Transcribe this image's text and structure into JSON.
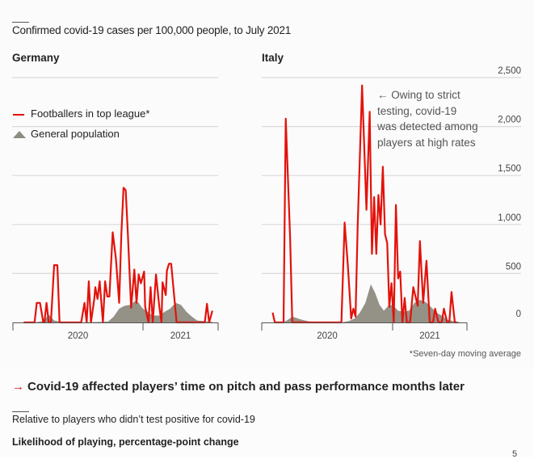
{
  "title": "Confirmed covid-19 cases per 100,000 people, to July 2021",
  "colors": {
    "footballers": "#e3120b",
    "population": "#8e8b80",
    "grid": "#d9d9d9",
    "axis": "#555555"
  },
  "legend": {
    "footballers": "Footballers in top league*",
    "population": "General population"
  },
  "annotation": {
    "arrow_icon": "←",
    "lines": [
      "Owing to strict",
      "testing, covid-19",
      "was detected among",
      "players at high rates"
    ]
  },
  "footnote": "*Seven-day moving average",
  "next_section": {
    "arrow_icon": "→",
    "title": "Covid-19 affected players’ time on pitch and pass performance months later",
    "subtitle": "Relative to players who didn’t test positive for covid-19",
    "metric_label": "Likelihood of playing, percentage-point change"
  },
  "page_number": "5",
  "chart_data": [
    {
      "type": "line",
      "title": "Germany",
      "xlabel": "",
      "ylabel": "",
      "x_units": "months since Jan 2020",
      "xlim": [
        0,
        19
      ],
      "ylim": [
        0,
        2500
      ],
      "yticks": [
        0,
        500,
        1000,
        1500,
        2000,
        2500
      ],
      "ytick_labels": [
        "0",
        "500",
        "1,000",
        "1,500",
        "2,000",
        "2,500"
      ],
      "xtick_labels": [
        "2020",
        "2021"
      ],
      "grid": true,
      "legend_position": "top-left",
      "series": [
        {
          "name": "Footballers in top league*",
          "kind": "line",
          "x": [
            1.0,
            2.0,
            2.2,
            2.5,
            2.8,
            2.9,
            3.1,
            3.3,
            3.5,
            3.8,
            3.8,
            4.1,
            4.3,
            4.5,
            6.3,
            6.6,
            6.8,
            7.0,
            7.2,
            7.5,
            7.6,
            7.8,
            8.0,
            8.3,
            8.5,
            8.7,
            8.9,
            9.2,
            9.5,
            9.8,
            10.0,
            10.2,
            10.4,
            10.6,
            10.9,
            11.2,
            11.4,
            11.6,
            11.8,
            12.1,
            12.2,
            12.5,
            12.7,
            12.9,
            13.2,
            13.5,
            13.7,
            13.8,
            14.1,
            14.2,
            14.4,
            14.6,
            15.1,
            15.7,
            17.7,
            17.9,
            18.1,
            18.4
          ],
          "y": [
            0,
            0,
            200,
            200,
            0,
            0,
            200,
            0,
            0,
            585,
            585,
            585,
            0,
            0,
            0,
            200,
            0,
            420,
            0,
            240,
            360,
            240,
            420,
            0,
            420,
            265,
            265,
            920,
            650,
            200,
            900,
            1375,
            1350,
            900,
            150,
            540,
            200,
            490,
            400,
            520,
            160,
            0,
            360,
            0,
            490,
            160,
            0,
            410,
            280,
            530,
            600,
            600,
            0,
            0,
            0,
            190,
            0,
            120
          ]
        },
        {
          "name": "General population",
          "kind": "area",
          "x": [
            0,
            2.0,
            2.8,
            3.3,
            3.8,
            4.5,
            6.0,
            7.0,
            8.0,
            8.8,
            9.3,
            9.8,
            10.3,
            10.8,
            11.3,
            11.6,
            11.9,
            12.4,
            12.9,
            13.5,
            14.0,
            14.5,
            15.0,
            15.5,
            16.0,
            16.5,
            17.0,
            18.4
          ],
          "y": [
            0,
            0,
            15,
            80,
            20,
            5,
            0,
            2,
            5,
            10,
            60,
            140,
            170,
            180,
            220,
            200,
            150,
            110,
            70,
            70,
            110,
            140,
            200,
            180,
            110,
            60,
            20,
            5
          ]
        }
      ]
    },
    {
      "type": "line",
      "title": "Italy",
      "xlabel": "",
      "ylabel": "",
      "x_units": "months since Jan 2020",
      "xlim": [
        0,
        19
      ],
      "ylim": [
        0,
        2500
      ],
      "yticks": [
        0,
        500,
        1000,
        1500,
        2000,
        2500
      ],
      "ytick_labels": [
        "0",
        "500",
        "1,000",
        "1,500",
        "2,000",
        "2,500"
      ],
      "xtick_labels": [
        "2020",
        "2021"
      ],
      "grid": true,
      "legend_position": "none",
      "series": [
        {
          "name": "Footballers in top league*",
          "kind": "line",
          "x": [
            1.0,
            1.2,
            2.0,
            2.2,
            2.6,
            2.8,
            3.0,
            7.3,
            7.6,
            7.9,
            8.2,
            8.4,
            8.6,
            8.8,
            9.2,
            9.6,
            9.9,
            10.1,
            10.3,
            10.5,
            10.7,
            10.9,
            11.1,
            11.3,
            11.5,
            11.7,
            11.9,
            12.1,
            12.3,
            12.5,
            12.7,
            12.9,
            13.1,
            13.3,
            13.6,
            13.9,
            14.3,
            14.5,
            14.8,
            15.1,
            15.4,
            15.7,
            15.9,
            16.2,
            16.5,
            16.7,
            17.0,
            17.2,
            17.4,
            17.7,
            17.9
          ],
          "y": [
            100,
            0,
            0,
            2080,
            870,
            0,
            0,
            0,
            1020,
            580,
            40,
            140,
            60,
            1000,
            2420,
            1150,
            2150,
            700,
            1280,
            700,
            1300,
            1000,
            1590,
            900,
            810,
            160,
            400,
            0,
            1200,
            450,
            520,
            0,
            250,
            0,
            0,
            360,
            170,
            830,
            200,
            630,
            0,
            0,
            140,
            0,
            0,
            140,
            0,
            0,
            310,
            0,
            0
          ]
        },
        {
          "name": "General population",
          "kind": "area",
          "x": [
            0,
            1.8,
            2.3,
            2.8,
            3.6,
            4.5,
            5.5,
            7.3,
            8.0,
            8.5,
            9.0,
            9.5,
            10.0,
            10.4,
            10.8,
            11.2,
            11.6,
            12.0,
            12.5,
            13.0,
            13.5,
            14.0,
            14.5,
            15.0,
            15.5,
            16.0,
            16.5,
            17.0,
            17.5,
            18.1
          ],
          "y": [
            0,
            0,
            20,
            60,
            30,
            5,
            0,
            0,
            15,
            40,
            100,
            200,
            390,
            300,
            180,
            120,
            170,
            180,
            120,
            110,
            120,
            200,
            230,
            210,
            160,
            100,
            70,
            30,
            15,
            5
          ]
        }
      ]
    }
  ]
}
